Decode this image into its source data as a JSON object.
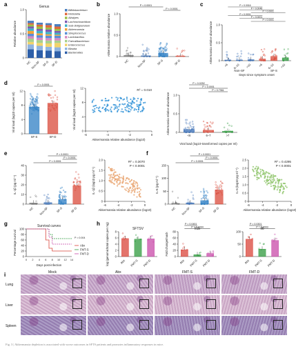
{
  "panel_labels": [
    "a",
    "b",
    "c",
    "d",
    "e",
    "f",
    "g",
    "h",
    "i"
  ],
  "colors": {
    "hc": "#777777",
    "nonsf": "#3b6fb5",
    "sfs": "#2f7fc4",
    "sfd": "#d94a3a",
    "scatter_d": "#2a8fd6",
    "scatter_e": "#e8a46f",
    "scatter_f": "#8fc46a",
    "abx": "#d9443a",
    "fmts": "#2f9a3e",
    "fmtd": "#c84aa8"
  },
  "chart_data": [
    {
      "id": "a",
      "type": "bar",
      "stacked": true,
      "title": "Genus",
      "ylabel": "Relative abundance",
      "ylim": [
        0,
        1
      ],
      "yticks": [
        "0",
        "0.5",
        "1.0"
      ],
      "categories": [
        "HC",
        "Non-SF",
        "SF-S",
        "SF-D"
      ],
      "legend": [
        "Bifidobacterium",
        "Klebsiella",
        "Alistipes",
        "Lachnoclostridium",
        "Sub-doligranulum",
        "Akkermansia",
        "Streptococcus",
        "Lactobacillus",
        "Faecalibacterium",
        "Enterococcus",
        "Blautia",
        "Bacteroides"
      ],
      "legend_colors": [
        "#4a7fc1",
        "#e06a3b",
        "#9bbf48",
        "#7d5cb3",
        "#3fb2c6",
        "#f0a23a",
        "#5a8fd6",
        "#d88ac0",
        "#a8d08d",
        "#f2d36b",
        "#8fb4e0",
        "#2e5fa8"
      ],
      "series": [
        {
          "name": "Bacteroides",
          "values": [
            0.18,
            0.16,
            0.15,
            0.14
          ]
        },
        {
          "name": "Blautia",
          "values": [
            0.1,
            0.09,
            0.08,
            0.08
          ]
        },
        {
          "name": "Enterococcus",
          "values": [
            0.05,
            0.06,
            0.07,
            0.09
          ]
        },
        {
          "name": "Faecalibacterium",
          "values": [
            0.07,
            0.06,
            0.06,
            0.05
          ]
        },
        {
          "name": "Lactobacillus",
          "values": [
            0.05,
            0.05,
            0.05,
            0.05
          ]
        },
        {
          "name": "Streptococcus",
          "values": [
            0.05,
            0.05,
            0.05,
            0.05
          ]
        },
        {
          "name": "Akkermansia",
          "values": [
            0.06,
            0.04,
            0.03,
            0.02
          ]
        },
        {
          "name": "Sub-doligranulum",
          "values": [
            0.05,
            0.05,
            0.05,
            0.04
          ]
        },
        {
          "name": "Lachnoclostridium",
          "values": [
            0.04,
            0.04,
            0.05,
            0.04
          ]
        },
        {
          "name": "Alistipes",
          "values": [
            0.04,
            0.05,
            0.04,
            0.04
          ]
        },
        {
          "name": "Klebsiella",
          "values": [
            0.03,
            0.04,
            0.05,
            0.05
          ]
        },
        {
          "name": "Bifidobacterium",
          "values": [
            0.05,
            0.04,
            0.04,
            0.05
          ]
        }
      ]
    },
    {
      "id": "b",
      "type": "bar",
      "ylabel": "Akkermansia relative abundance",
      "ylim": [
        0,
        1
      ],
      "yticks": [
        "0",
        "0.5",
        "1.0"
      ],
      "categories": [
        "HC",
        "Non-SF",
        "SF-S",
        "SF-D"
      ],
      "values": [
        0.03,
        0.02,
        0.08,
        0.01
      ],
      "sig": [
        {
          "text": "P < 0.0001",
          "from": 0,
          "to": 2
        },
        {
          "text": "P < 0.0001",
          "from": 2,
          "to": 3
        }
      ]
    },
    {
      "id": "c",
      "type": "bar",
      "ylabel": "Akkermansia relative abundance",
      "xlabel": "Days since symptom onset",
      "ylim": [
        0,
        1
      ],
      "yticks": [
        "0",
        "0.5",
        "1.0"
      ],
      "groups": [
        "Non-SF",
        "SF-S"
      ],
      "categories": [
        "<6",
        "6–10",
        ">10",
        "<6",
        "6–10",
        ">10"
      ],
      "values": [
        0.02,
        0.02,
        0.03,
        0.05,
        0.12,
        0.08
      ],
      "sig": [
        "P = 0.0016",
        "P = 0.0048",
        "P = 0.0001",
        "P < 0.0001",
        "P = 0.0001",
        "P < 0.0001"
      ]
    },
    {
      "id": "d1",
      "type": "bar",
      "ylabel": "Viral load (log10 copies per ml)",
      "ylim": [
        0,
        12
      ],
      "yticks": [
        "0",
        "4",
        "8",
        "12"
      ],
      "categories": [
        "SF-S",
        "SF-D"
      ],
      "values": [
        7.5,
        8.6
      ],
      "sig": [
        "P < 0.0001"
      ]
    },
    {
      "id": "d2",
      "type": "scatter",
      "ylabel": "Viral load (log10 copies per ml)",
      "xlabel": "Akkermansia relative abundance (log10)",
      "xlim": [
        -6,
        0
      ],
      "ylim": [
        0,
        12
      ],
      "xticks": [
        "-6",
        "-4",
        "-2",
        "0"
      ],
      "yticks": [
        "0",
        "4",
        "8",
        "12"
      ],
      "stat": "R² = 0.010"
    },
    {
      "id": "d3",
      "type": "bar",
      "ylabel": "Akkermansia relative abundance",
      "xlabel": "Viral load (log10-transformed copies per ml)",
      "ylim": [
        0,
        1
      ],
      "yticks": [
        "0",
        "0.5",
        "1.0"
      ],
      "categories": [
        "<6",
        "6–7",
        ">7"
      ],
      "values": [
        0.08,
        0.06,
        0.03
      ],
      "sig": [
        "P = 0.0252",
        "P < 0.0001",
        "P = 0.7961"
      ]
    },
    {
      "id": "e1",
      "type": "bar",
      "ylabel": "IL-1β (pg ml⁻¹)",
      "ylim": [
        0,
        40
      ],
      "yticks": [
        "0",
        "10",
        "20",
        "30",
        "40"
      ],
      "categories": [
        "HC",
        "Non-SF",
        "SF-S",
        "SF-D"
      ],
      "values": [
        1.2,
        1.6,
        5.0,
        19.0
      ],
      "sig": [
        "P < 0.0001",
        "P < 0.0001",
        "P < 0.0001"
      ]
    },
    {
      "id": "e2",
      "type": "scatter",
      "ylabel": "IL-1β (log10 pg ml⁻¹)",
      "xlabel": "Akkermansia relative abundance (log10)",
      "xlim": [
        -6,
        0
      ],
      "ylim": [
        0,
        2
      ],
      "xticks": [
        "-6",
        "-4",
        "-2",
        "0"
      ],
      "yticks": [
        "0",
        "0.5",
        "1.0",
        "1.5",
        "2.0"
      ],
      "stat": [
        "R² = 0.3070",
        "P < 0.0001"
      ]
    },
    {
      "id": "f1",
      "type": "bar",
      "ylabel": "IL-6 (pg ml⁻¹)",
      "ylim": [
        0,
        150
      ],
      "yticks": [
        "0",
        "50",
        "100",
        "150"
      ],
      "categories": [
        "HC",
        "Non-SF",
        "SF-S",
        "SF-D"
      ],
      "values": [
        3,
        5,
        14,
        55
      ],
      "sig": [
        "P < 0.0001",
        "P < 0.0001",
        "P < 0.0001"
      ]
    },
    {
      "id": "f2",
      "type": "scatter",
      "ylabel": "IL-6 (log10 pg ml⁻¹)",
      "xlabel": "Akkermansia relative abundance (log10)",
      "xlim": [
        -6,
        0
      ],
      "ylim": [
        0,
        2.5
      ],
      "xticks": [
        "-6",
        "-4",
        "-2",
        "0"
      ],
      "yticks": [
        "0",
        "0.5",
        "1.0",
        "1.5",
        "2.0",
        "2.5"
      ],
      "stat": [
        "R² = 0.4295",
        "P < 0.0001"
      ]
    },
    {
      "id": "g",
      "type": "line",
      "title": "Survival curves",
      "ylabel": "Percentage survival",
      "xlabel": "Days post-infection",
      "xlim": [
        0,
        14
      ],
      "ylim": [
        0,
        100
      ],
      "xticks": [
        "0",
        "2",
        "4",
        "6",
        "8",
        "10",
        "12",
        "14"
      ],
      "yticks": [
        "0",
        "20",
        "40",
        "60",
        "80",
        "100"
      ],
      "series": [
        {
          "name": "Abx",
          "steps": [
            [
              0,
              100
            ],
            [
              5,
              100
            ],
            [
              6,
              60
            ],
            [
              7,
              30
            ],
            [
              8,
              20
            ],
            [
              14,
              20
            ]
          ]
        },
        {
          "name": "FMT-S",
          "steps": [
            [
              0,
              100
            ],
            [
              6,
              100
            ],
            [
              7,
              80
            ],
            [
              8,
              65
            ],
            [
              14,
              65
            ]
          ]
        },
        {
          "name": "FMT-D",
          "steps": [
            [
              0,
              100
            ],
            [
              6,
              100
            ],
            [
              7,
              70
            ],
            [
              8,
              45
            ],
            [
              14,
              45
            ]
          ]
        }
      ],
      "sig": [
        "P = 0.004"
      ]
    },
    {
      "id": "h1",
      "type": "bar",
      "title": "SFTSV",
      "ylabel": "log (genomic/total copies per mg)",
      "ylim": [
        0,
        8
      ],
      "yticks": [
        "0",
        "2",
        "4",
        "6",
        "8"
      ],
      "categories": [
        "Abx",
        "FMT-S",
        "FMT-D"
      ],
      "values": [
        5.8,
        5.6,
        5.7
      ]
    },
    {
      "id": "h2",
      "type": "bar",
      "title": "Il1b",
      "ylabel": "Fold change/mock",
      "ylim": [
        0,
        80
      ],
      "yticks": [
        "0",
        "20",
        "40",
        "60",
        "80"
      ],
      "categories": [
        "Abx",
        "FMT-S",
        "FMT-D"
      ],
      "values": [
        22,
        6,
        10
      ],
      "sig": [
        "P = 0.0451",
        "P = 0.0094"
      ]
    },
    {
      "id": "h3",
      "type": "bar",
      "title": "Il6",
      "ylim": [
        0,
        100
      ],
      "yticks": [
        "0",
        "50",
        "100"
      ],
      "categories": [
        "Abx",
        "FMT-S",
        "FMT-D"
      ],
      "values": [
        70,
        30,
        65
      ],
      "sig": [
        "P = 0.0301",
        "P = 0.0003"
      ]
    }
  ],
  "histology": {
    "columns": [
      "Mock",
      "Abx",
      "FMT-S",
      "FMT-D"
    ],
    "rows": [
      "Lung",
      "Liver",
      "Spleen"
    ],
    "tints": [
      "#c6a7c9",
      "#d6b6cf",
      "#9a87b8"
    ]
  },
  "caption": "Fig. 3 | Akkermansia depletion is associated with worse outcomes in SFTS patients and promotes inflammatory responses in mice."
}
